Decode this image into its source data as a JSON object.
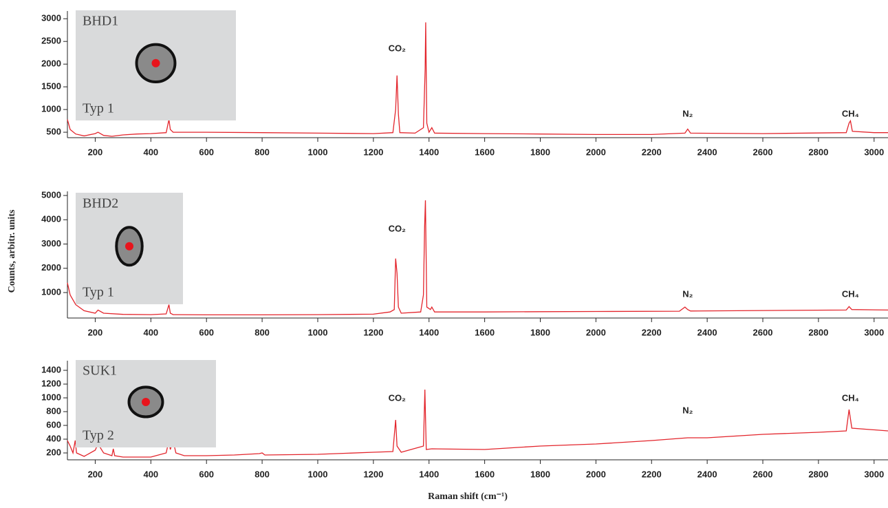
{
  "y_label": "Counts, arbitr. units",
  "x_label": "Raman shift (cm⁻¹)",
  "chart_data": [
    {
      "type": "line",
      "color": "#e3242b",
      "inset_labels": [
        "BHD1",
        "Typ 1"
      ],
      "annotations": [
        {
          "text": "CO₂",
          "x": 1285
        },
        {
          "text": "N₂",
          "x": 2330
        },
        {
          "text": "CH₄",
          "x": 2915
        }
      ],
      "x": [
        100,
        110,
        130,
        160,
        200,
        210,
        230,
        260,
        300,
        350,
        400,
        455,
        465,
        470,
        480,
        600,
        800,
        1000,
        1200,
        1270,
        1280,
        1285,
        1290,
        1295,
        1350,
        1380,
        1386,
        1388,
        1392,
        1400,
        1410,
        1420,
        1600,
        1800,
        2000,
        2200,
        2320,
        2330,
        2340,
        2600,
        2900,
        2910,
        2915,
        2922,
        3000,
        3050
      ],
      "values": [
        780,
        560,
        460,
        420,
        470,
        500,
        430,
        410,
        440,
        460,
        470,
        490,
        780,
        560,
        500,
        500,
        490,
        480,
        470,
        490,
        1000,
        1750,
        900,
        490,
        480,
        600,
        1900,
        2920,
        700,
        500,
        600,
        480,
        470,
        460,
        450,
        450,
        480,
        570,
        480,
        470,
        490,
        700,
        750,
        520,
        490,
        490
      ],
      "xlim": [
        100,
        3050
      ],
      "xticks": [
        200,
        400,
        600,
        800,
        1000,
        1200,
        1400,
        1600,
        1800,
        2000,
        2200,
        2400,
        2600,
        2800,
        3000
      ],
      "ylim": [
        380,
        3170
      ],
      "yticks": [
        500,
        1000,
        1500,
        2000,
        2500,
        3000
      ]
    },
    {
      "type": "line",
      "color": "#e3242b",
      "inset_labels": [
        "BHD2",
        "Typ 1"
      ],
      "annotations": [
        {
          "text": "CO₂",
          "x": 1285
        },
        {
          "text": "N₂",
          "x": 2330
        },
        {
          "text": "CH₄",
          "x": 2915
        }
      ],
      "x": [
        100,
        110,
        130,
        160,
        200,
        210,
        230,
        300,
        400,
        455,
        465,
        470,
        480,
        600,
        800,
        1000,
        1200,
        1260,
        1275,
        1280,
        1285,
        1290,
        1300,
        1370,
        1380,
        1384,
        1387,
        1392,
        1405,
        1410,
        1420,
        1600,
        1800,
        2000,
        2300,
        2320,
        2330,
        2340,
        2600,
        2900,
        2910,
        2920,
        3050
      ],
      "values": [
        1400,
        900,
        500,
        250,
        150,
        280,
        150,
        100,
        90,
        120,
        500,
        150,
        90,
        80,
        80,
        90,
        110,
        200,
        300,
        2400,
        1800,
        400,
        150,
        200,
        900,
        3700,
        4800,
        400,
        300,
        400,
        200,
        200,
        210,
        220,
        230,
        400,
        300,
        240,
        260,
        280,
        420,
        300,
        280
      ],
      "xlim": [
        100,
        3050
      ],
      "xticks": [
        200,
        400,
        600,
        800,
        1000,
        1200,
        1400,
        1600,
        1800,
        2000,
        2200,
        2400,
        2600,
        2800,
        3000
      ],
      "ylim": [
        -50,
        5170
      ],
      "yticks": [
        1000,
        2000,
        3000,
        4000,
        5000
      ]
    },
    {
      "type": "line",
      "color": "#e3242b",
      "inset_labels": [
        "SUK1",
        "Typ 2"
      ],
      "annotations": [
        {
          "text": "CO₂",
          "x": 1285
        },
        {
          "text": "N₂",
          "x": 2330
        },
        {
          "text": "CH₄",
          "x": 2915
        }
      ],
      "x": [
        100,
        110,
        120,
        128,
        133,
        160,
        200,
        210,
        230,
        260,
        265,
        270,
        300,
        400,
        455,
        465,
        470,
        480,
        490,
        520,
        600,
        700,
        790,
        800,
        810,
        1000,
        1200,
        1270,
        1280,
        1285,
        1300,
        1380,
        1385,
        1390,
        1410,
        1600,
        1800,
        2000,
        2200,
        2330,
        2400,
        2600,
        2800,
        2900,
        2910,
        2920,
        3050
      ],
      "values": [
        380,
        300,
        200,
        380,
        200,
        150,
        240,
        330,
        200,
        160,
        260,
        160,
        140,
        140,
        200,
        380,
        250,
        380,
        200,
        160,
        160,
        170,
        190,
        200,
        170,
        180,
        210,
        220,
        680,
        300,
        210,
        300,
        1120,
        250,
        260,
        250,
        300,
        330,
        380,
        420,
        420,
        470,
        500,
        520,
        830,
        560,
        520
      ],
      "xlim": [
        100,
        3050
      ],
      "xticks": [
        200,
        400,
        600,
        800,
        1000,
        1200,
        1400,
        1600,
        1800,
        2000,
        2200,
        2400,
        2600,
        2800,
        3000
      ],
      "ylim": [
        100,
        1540
      ],
      "yticks": [
        200,
        400,
        600,
        800,
        1000,
        1200,
        1400
      ]
    }
  ]
}
